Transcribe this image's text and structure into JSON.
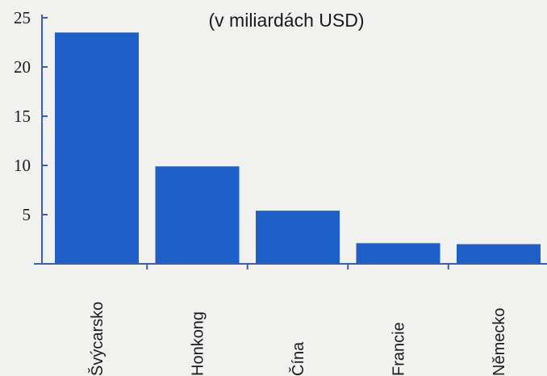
{
  "chart_data": {
    "type": "bar",
    "title": "",
    "subtitle": "(v miliardách USD)",
    "xlabel": "",
    "ylabel": "",
    "categories": [
      "Švýcarsko",
      "Honkong",
      "Čína",
      "Francie",
      "Německo"
    ],
    "values": [
      23.5,
      9.9,
      5.4,
      2.1,
      2.0
    ],
    "ylim": [
      0,
      25
    ],
    "yticks": [
      5,
      10,
      15,
      20,
      25
    ],
    "grid": false,
    "bar_color": "#1f5fc8",
    "axis_color": "#3a5fb0"
  }
}
